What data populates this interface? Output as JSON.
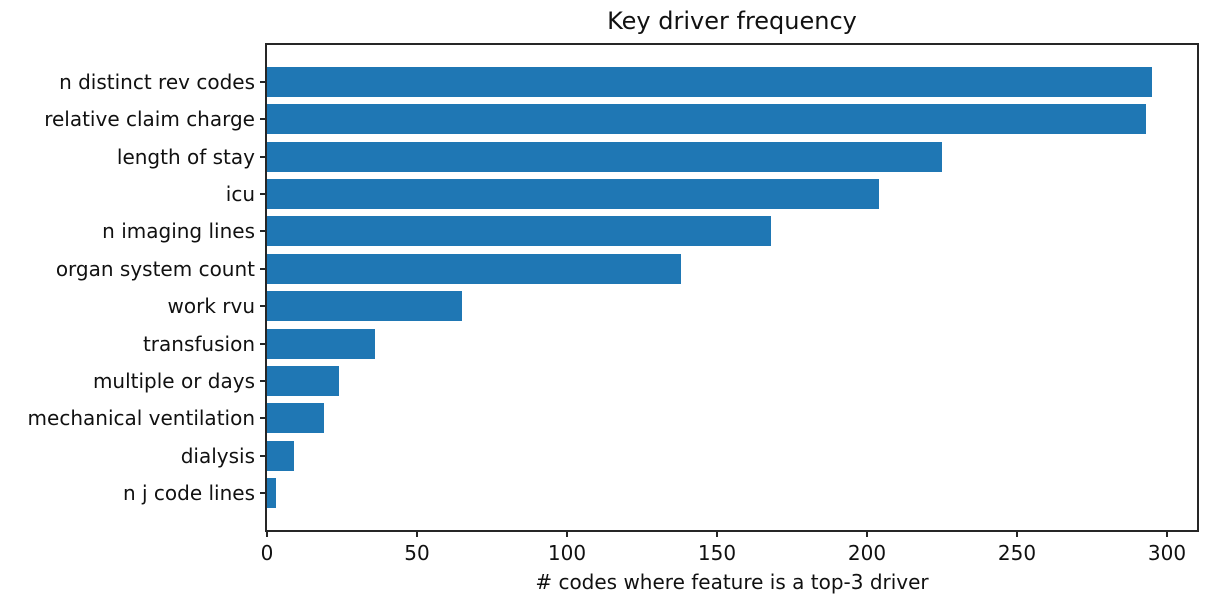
{
  "chart_data": {
    "type": "bar",
    "orientation": "horizontal",
    "title": "Key driver frequency",
    "xlabel": "# codes where feature is a top-3 driver",
    "ylabel": "",
    "categories": [
      "n distinct rev codes",
      "relative claim charge",
      "length of stay",
      "icu",
      "n imaging lines",
      "organ system count",
      "work rvu",
      "transfusion",
      "multiple or days",
      "mechanical ventilation",
      "dialysis",
      "n j code lines"
    ],
    "values": [
      295,
      293,
      225,
      204,
      168,
      138,
      65,
      36,
      24,
      19,
      9,
      3
    ],
    "xticks": [
      0,
      50,
      100,
      150,
      200,
      250,
      300
    ],
    "xlim": [
      0,
      310
    ],
    "bar_color": "#1f77b4",
    "axis_color": "#262626",
    "text_color": "#111111",
    "grid": false,
    "legend": false
  }
}
